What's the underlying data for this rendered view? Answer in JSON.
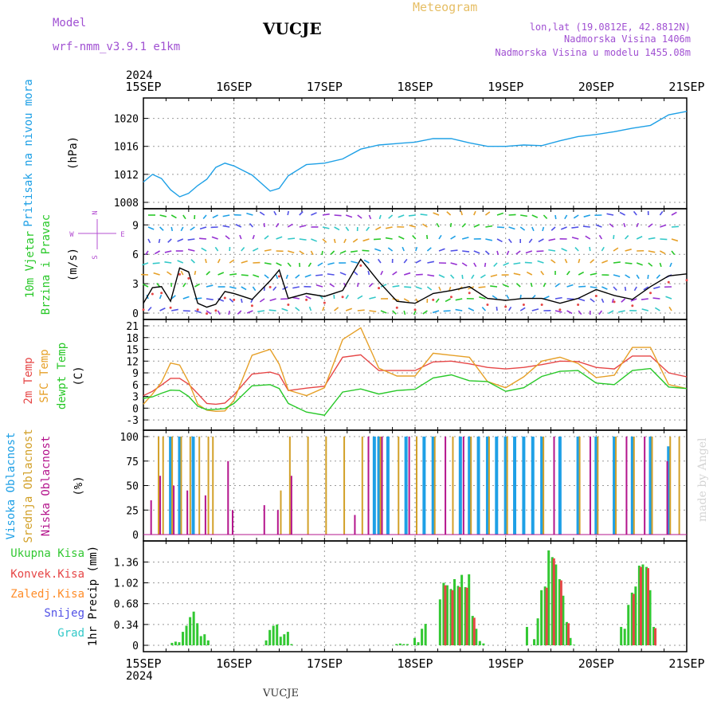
{
  "header": {
    "model_label": "Model",
    "model_name": "wrf-nmm_v3.9.1  e1km",
    "station": "VUCJE",
    "title": "Meteogram",
    "coords": "lon,lat (19.0812E, 42.8812N)",
    "altitude": "Nadmorska Visina 1406m",
    "model_altitude": "Nadmorska Visina u modelu 1455.08m",
    "year_top": "2024",
    "year_bottom": "2024",
    "footer_station": "VUCJE",
    "credit": "made by Angel"
  },
  "colors": {
    "pressure": "#1ea0e6",
    "temp2m": "#e64646",
    "sfc": "#e6a028",
    "dew": "#28c828",
    "high_cloud": "#1ea0e6",
    "mid_cloud": "#d2a028",
    "low_cloud": "#b4148c",
    "total_precip": "#32c832",
    "conv_precip": "#e64646",
    "frozen_precip": "#ff8c28",
    "snow": "#5050e6",
    "hail": "#32c8c8",
    "model_text": "#a050d2",
    "title_text": "#e6be64",
    "wind_compass": "#b450d2"
  },
  "chart_data": [
    {
      "type": "line",
      "id": "pressure",
      "ylabel_color_text": "Pritisak na nivou mora",
      "unit": "(hPa)",
      "x_days": [
        "15SEP",
        "16SEP",
        "17SEP",
        "18SEP",
        "19SEP",
        "20SEP",
        "21SEP"
      ],
      "ylim": [
        1008,
        1022
      ],
      "yticks": [
        1008,
        1012,
        1016,
        1020
      ],
      "series": [
        {
          "name": "Pritisak na nivou mora",
          "x": [
            0,
            0.1,
            0.2,
            0.3,
            0.4,
            0.5,
            0.6,
            0.7,
            0.8,
            0.9,
            1.0,
            1.2,
            1.4,
            1.5,
            1.6,
            1.8,
            2.0,
            2.2,
            2.4,
            2.6,
            2.8,
            3.0,
            3.2,
            3.4,
            3.6,
            3.8,
            4.0,
            4.2,
            4.4,
            4.6,
            4.8,
            5.0,
            5.2,
            5.4,
            5.6,
            5.8,
            6.0
          ],
          "y": [
            1010.9,
            1012.0,
            1011.4,
            1009.8,
            1008.8,
            1009.3,
            1010.4,
            1011.3,
            1013.0,
            1013.6,
            1013.2,
            1011.9,
            1009.6,
            1010.0,
            1011.8,
            1013.4,
            1013.6,
            1014.2,
            1015.6,
            1016.2,
            1016.4,
            1016.6,
            1017.1,
            1017.1,
            1016.5,
            1016.0,
            1016.0,
            1016.2,
            1016.1,
            1016.8,
            1017.4,
            1017.7,
            1018.1,
            1018.6,
            1019.0,
            1020.5,
            1021.0
          ]
        }
      ]
    },
    {
      "type": "line",
      "id": "wind",
      "ylabel_color_text": [
        "10m Vjetar",
        "Brzina i Pravac"
      ],
      "unit": "(m/s)",
      "compass": [
        "N",
        "W",
        "E",
        "S"
      ],
      "ylim": [
        0,
        10
      ],
      "yticks": [
        0,
        3,
        6,
        9
      ],
      "series": [
        {
          "name": "",
          "x": [
            0,
            0.1,
            0.2,
            0.3,
            0.4,
            0.5,
            0.6,
            0.7,
            0.8,
            0.9,
            1.0,
            1.2,
            1.4,
            1.5,
            1.6,
            1.8,
            2.0,
            2.2,
            2.4,
            2.6,
            2.8,
            3.0,
            3.2,
            3.4,
            3.6,
            3.8,
            4.0,
            4.2,
            4.4,
            4.6,
            4.8,
            5.0,
            5.2,
            5.4,
            5.6,
            5.8,
            6.0
          ],
          "y": [
            1.0,
            2.6,
            2.7,
            1.2,
            4.6,
            4.2,
            1.0,
            0.6,
            0.9,
            2.2,
            2.0,
            1.4,
            3.3,
            4.4,
            1.5,
            2.0,
            1.7,
            2.3,
            5.5,
            3.2,
            1.2,
            1.0,
            2.0,
            2.3,
            2.7,
            1.5,
            1.3,
            1.5,
            1.5,
            1.0,
            1.5,
            2.4,
            1.8,
            1.4,
            2.7,
            3.8,
            4.0
          ]
        }
      ]
    },
    {
      "type": "line",
      "id": "temperature",
      "ylabel_color_text": [
        "2m Temp",
        "SFC Temp",
        "dewpt Temp"
      ],
      "unit": "(C)",
      "ylim": [
        -4,
        21
      ],
      "yticks": [
        -3,
        0,
        3,
        6,
        9,
        12,
        15,
        18,
        21
      ],
      "series": [
        {
          "name": "2m Temp",
          "x": [
            0,
            0.1,
            0.2,
            0.3,
            0.4,
            0.5,
            0.6,
            0.7,
            0.8,
            0.9,
            1.0,
            1.2,
            1.4,
            1.5,
            1.6,
            1.8,
            2.0,
            2.2,
            2.4,
            2.6,
            2.8,
            3.0,
            3.2,
            3.4,
            3.6,
            3.8,
            4.0,
            4.2,
            4.4,
            4.6,
            4.8,
            5.0,
            5.2,
            5.4,
            5.6,
            5.8,
            6.0
          ],
          "y": [
            3.2,
            4.3,
            5.9,
            7.6,
            7.6,
            6.1,
            3.7,
            1.2,
            1.0,
            1.3,
            3.4,
            8.7,
            9.2,
            8.5,
            4.5,
            5.1,
            5.6,
            13.0,
            13.6,
            9.6,
            9.6,
            9.6,
            11.8,
            12.0,
            11.3,
            10.4,
            10.0,
            10.4,
            11.1,
            12.0,
            11.9,
            10.4,
            10.0,
            13.3,
            13.3,
            9.0,
            8.0
          ]
        },
        {
          "name": "SFC Temp",
          "x": [
            0,
            0.1,
            0.2,
            0.3,
            0.4,
            0.5,
            0.6,
            0.7,
            0.8,
            0.9,
            1.0,
            1.2,
            1.4,
            1.5,
            1.6,
            1.8,
            2.0,
            2.2,
            2.4,
            2.6,
            2.8,
            3.0,
            3.2,
            3.4,
            3.6,
            3.8,
            4.0,
            4.2,
            4.4,
            4.6,
            4.8,
            5.0,
            5.2,
            5.4,
            5.6,
            5.8,
            6.0
          ],
          "y": [
            1.0,
            3.6,
            6.6,
            11.5,
            11.0,
            6.7,
            1.0,
            -0.5,
            -0.8,
            -0.7,
            2.0,
            13.5,
            15.0,
            11.2,
            4.6,
            3.2,
            5.2,
            17.5,
            20.5,
            10.2,
            8.2,
            8.2,
            14.0,
            13.5,
            13.0,
            6.8,
            5.2,
            8.0,
            12.0,
            13.0,
            11.4,
            7.8,
            8.4,
            15.5,
            15.5,
            6.0,
            5.0
          ]
        },
        {
          "name": "dewpt Temp",
          "x": [
            0,
            0.1,
            0.2,
            0.3,
            0.4,
            0.5,
            0.6,
            0.7,
            0.8,
            0.9,
            1.0,
            1.2,
            1.4,
            1.5,
            1.6,
            1.8,
            2.0,
            2.2,
            2.4,
            2.6,
            2.8,
            3.0,
            3.2,
            3.4,
            3.6,
            3.8,
            4.0,
            4.2,
            4.4,
            4.6,
            4.8,
            5.0,
            5.2,
            5.4,
            5.6,
            5.8,
            6.0
          ],
          "y": [
            2.5,
            2.9,
            3.8,
            4.6,
            4.5,
            3.0,
            0.5,
            -0.4,
            -0.3,
            -0.1,
            1.2,
            5.7,
            6.0,
            5.0,
            1.2,
            -1.0,
            -1.8,
            4.1,
            4.9,
            3.6,
            4.5,
            4.8,
            7.7,
            8.5,
            7.0,
            6.8,
            4.3,
            5.2,
            8.1,
            9.4,
            9.6,
            6.4,
            6.0,
            9.6,
            10.1,
            5.4,
            5.0
          ]
        }
      ]
    },
    {
      "type": "bar",
      "id": "cloud",
      "ylabel_color_text": [
        "Visoka Oblacnost",
        "Srednja Oblacnost",
        "Niska Oblacnost"
      ],
      "unit": "(%)",
      "ylim": [
        0,
        100
      ],
      "yticks": [
        0,
        25,
        50,
        75,
        100
      ],
      "series": [
        {
          "name": "Visoka Oblacnost",
          "x": [
            0.3,
            0.4,
            0.55,
            2.55,
            2.6,
            2.7,
            2.9,
            3.1,
            3.2,
            3.5,
            3.6,
            3.7,
            3.8,
            3.9,
            4.0,
            4.1,
            4.2,
            4.3,
            4.4,
            4.6,
            4.8,
            5.0,
            5.2,
            5.4,
            5.6,
            5.8
          ],
          "values": [
            100,
            100,
            100,
            100,
            100,
            100,
            100,
            100,
            100,
            100,
            100,
            100,
            100,
            100,
            100,
            100,
            100,
            100,
            100,
            100,
            100,
            100,
            100,
            100,
            100,
            90
          ]
        },
        {
          "name": "Srednja Oblacnost",
          "x": [
            0.15,
            0.2,
            0.3,
            0.4,
            0.5,
            0.6,
            0.7,
            0.75,
            1.5,
            1.6,
            1.8,
            2.0,
            2.2,
            2.4,
            2.6,
            2.8,
            3.0,
            3.2,
            3.4,
            3.6,
            3.8,
            4.0,
            4.4,
            4.8,
            5.0,
            5.2,
            5.4,
            5.6,
            5.8,
            5.9
          ],
          "values": [
            100,
            100,
            100,
            100,
            100,
            100,
            100,
            100,
            45,
            100,
            100,
            100,
            100,
            100,
            100,
            100,
            100,
            100,
            100,
            100,
            100,
            100,
            100,
            100,
            100,
            100,
            100,
            100,
            100,
            100
          ]
        },
        {
          "name": "Niska Oblacnost",
          "x": [
            0.05,
            0.15,
            0.3,
            0.45,
            0.65,
            0.9,
            0.95,
            1.3,
            1.45,
            1.6,
            2.3,
            2.45,
            2.6,
            2.9,
            3.3,
            3.5,
            4.5,
            4.9,
            5.3,
            5.5,
            5.75
          ],
          "values": [
            35,
            60,
            50,
            45,
            40,
            75,
            25,
            30,
            25,
            60,
            20,
            100,
            100,
            100,
            100,
            100,
            100,
            100,
            100,
            100,
            75
          ]
        }
      ]
    },
    {
      "type": "bar",
      "id": "precip",
      "ylabel_color_text": [
        "Ukupna Kisa",
        "Konvek.Kisa",
        "Zaledj.Kisa",
        "Snijeg",
        "Grad"
      ],
      "unit": "1hr Precip (mm)",
      "ylim": [
        0,
        1.6
      ],
      "yticks": [
        0,
        0.34,
        0.68,
        1.02,
        1.36
      ],
      "yticklabels": [
        "0",
        "0.34",
        "0.68",
        "1.02",
        "1.36"
      ],
      "series": [
        {
          "name": "Ukupna Kisa",
          "x": [
            0.32,
            0.36,
            0.4,
            0.44,
            0.48,
            0.52,
            0.56,
            0.6,
            0.64,
            0.68,
            0.72,
            1.36,
            1.4,
            1.44,
            1.48,
            1.52,
            1.56,
            1.6,
            1.64,
            2.8,
            2.84,
            2.88,
            2.92,
            3.0,
            3.04,
            3.08,
            3.12,
            3.28,
            3.32,
            3.36,
            3.4,
            3.44,
            3.48,
            3.52,
            3.56,
            3.6,
            3.64,
            3.68,
            3.72,
            3.76,
            4.24,
            4.32,
            4.36,
            4.4,
            4.44,
            4.48,
            4.52,
            4.56,
            4.6,
            4.64,
            4.68,
            4.72,
            4.76,
            5.28,
            5.32,
            5.36,
            5.4,
            5.44,
            5.48,
            5.52,
            5.56,
            5.6,
            5.64
          ],
          "values": [
            0.04,
            0.06,
            0.05,
            0.22,
            0.32,
            0.46,
            0.55,
            0.36,
            0.15,
            0.18,
            0.08,
            0.08,
            0.25,
            0.32,
            0.34,
            0.14,
            0.18,
            0.22,
            0.02,
            0.02,
            0.03,
            0.02,
            0.02,
            0.12,
            0.05,
            0.27,
            0.35,
            0.75,
            1.02,
            0.98,
            0.92,
            1.08,
            0.97,
            1.15,
            0.95,
            1.16,
            0.48,
            0.27,
            0.07,
            0.03,
            0.3,
            0.1,
            0.44,
            0.9,
            0.96,
            1.55,
            1.44,
            1.32,
            1.08,
            0.81,
            0.38,
            0.12,
            0.01,
            0.3,
            0.27,
            0.66,
            0.86,
            0.96,
            1.3,
            1.32,
            1.28,
            0.9,
            0.3
          ]
        },
        {
          "name": "Konvek.Kisa",
          "x": [
            3.32,
            3.4,
            3.48,
            3.56,
            3.64,
            4.44,
            4.52,
            4.6,
            4.68,
            5.4,
            5.48,
            5.56,
            5.64
          ],
          "values": [
            0.98,
            0.9,
            0.95,
            0.94,
            0.45,
            0.94,
            1.42,
            1.06,
            0.36,
            0.84,
            1.28,
            1.26,
            0.28
          ]
        }
      ]
    }
  ]
}
